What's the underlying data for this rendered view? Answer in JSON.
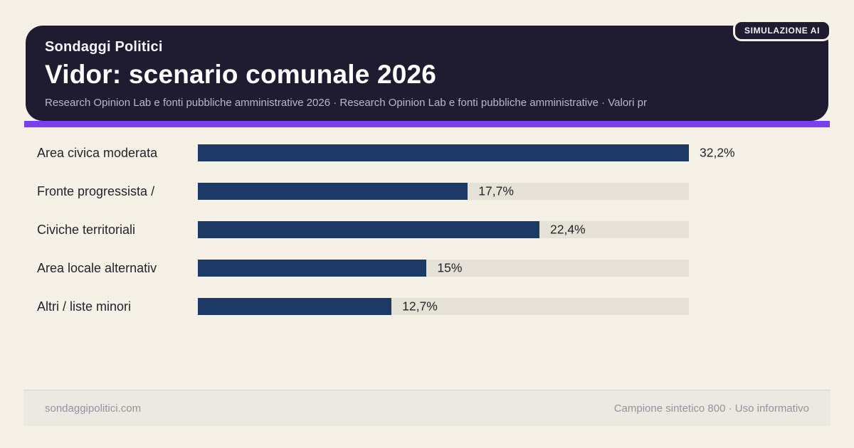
{
  "badge": {
    "label": "SIMULAZIONE AI"
  },
  "header": {
    "brand": "Sondaggi Politici",
    "title": "Vidor: scenario comunale 2026",
    "subtitle": "Research Opinion Lab e fonti pubbliche amministrative 2026 · Research Opinion Lab e fonti pubbliche amministrative · Valori pr"
  },
  "chart_data": {
    "type": "bar",
    "orientation": "horizontal",
    "title": "Vidor: scenario comunale 2026",
    "categories": [
      "Area civica moderata",
      "Fronte progressista /",
      "Civiche territoriali",
      "Area locale alternativ",
      "Altri / liste minori"
    ],
    "values": [
      32.2,
      17.7,
      22.4,
      15,
      12.7
    ],
    "value_labels": [
      "32,2%",
      "17,7%",
      "22,4%",
      "15%",
      "12,7%"
    ],
    "xlim": [
      0,
      32.2
    ],
    "grid": false,
    "legend": false,
    "colors": {
      "bar": "#1d3a66",
      "track": "#e6e2d8"
    }
  },
  "footer": {
    "left": "sondaggipolitici.com",
    "right": "Campione sintetico 800 · Uso informativo"
  }
}
